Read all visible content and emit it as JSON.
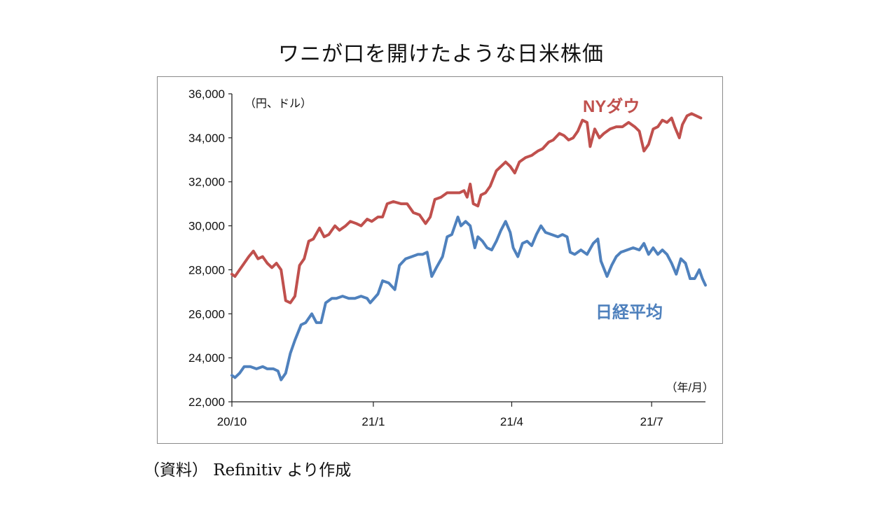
{
  "title": "ワニが口を開けたような日米株価",
  "source": "（資料） Refinitiv より作成",
  "colors": {
    "ny_dow": "#c0504d",
    "nikkei": "#4f81bd",
    "axis": "#222222",
    "frame": "#8a8a8a"
  },
  "chart_data": {
    "type": "line",
    "title": "ワニが口を開けたような日米株価",
    "ylabel": "（円、ドル）",
    "xlabel": "（年/月）",
    "ylim": [
      22000,
      36000
    ],
    "yticks": [
      "22,000",
      "24,000",
      "26,000",
      "28,000",
      "30,000",
      "32,000",
      "34,000",
      "36,000"
    ],
    "ytick_values": [
      22000,
      24000,
      26000,
      28000,
      30000,
      32000,
      34000,
      36000
    ],
    "xlim": [
      "2020-10-01",
      "2021-08-05"
    ],
    "xticks": [
      {
        "label": "20/10",
        "date": "2020-10-01"
      },
      {
        "label": "21/1",
        "date": "2021-01-01"
      },
      {
        "label": "21/4",
        "date": "2021-04-01"
      },
      {
        "label": "21/7",
        "date": "2021-07-01"
      }
    ],
    "grid": false,
    "legend": "inline labels",
    "series": [
      {
        "name": "NYダウ",
        "color": "#c0504d",
        "points": [
          [
            "2020-10-01",
            27800
          ],
          [
            "2020-10-03",
            27700
          ],
          [
            "2020-10-06",
            28000
          ],
          [
            "2020-10-08",
            28200
          ],
          [
            "2020-10-12",
            28600
          ],
          [
            "2020-10-15",
            28850
          ],
          [
            "2020-10-18",
            28500
          ],
          [
            "2020-10-21",
            28600
          ],
          [
            "2020-10-24",
            28300
          ],
          [
            "2020-10-27",
            28100
          ],
          [
            "2020-10-30",
            28300
          ],
          [
            "2020-11-02",
            28000
          ],
          [
            "2020-11-05",
            26600
          ],
          [
            "2020-11-08",
            26500
          ],
          [
            "2020-11-11",
            26800
          ],
          [
            "2020-11-14",
            28200
          ],
          [
            "2020-11-17",
            28500
          ],
          [
            "2020-11-20",
            29300
          ],
          [
            "2020-11-23",
            29400
          ],
          [
            "2020-11-27",
            29900
          ],
          [
            "2020-11-30",
            29500
          ],
          [
            "2020-12-03",
            29600
          ],
          [
            "2020-12-07",
            30000
          ],
          [
            "2020-12-10",
            29800
          ],
          [
            "2020-12-14",
            30000
          ],
          [
            "2020-12-17",
            30200
          ],
          [
            "2020-12-21",
            30100
          ],
          [
            "2020-12-24",
            30000
          ],
          [
            "2020-12-28",
            30300
          ],
          [
            "2020-12-31",
            30200
          ],
          [
            "2021-01-04",
            30400
          ],
          [
            "2021-01-07",
            30400
          ],
          [
            "2021-01-10",
            31000
          ],
          [
            "2021-01-14",
            31100
          ],
          [
            "2021-01-19",
            31000
          ],
          [
            "2021-01-23",
            31000
          ],
          [
            "2021-01-27",
            30600
          ],
          [
            "2021-01-31",
            30500
          ],
          [
            "2021-02-04",
            30100
          ],
          [
            "2021-02-07",
            30400
          ],
          [
            "2021-02-10",
            31200
          ],
          [
            "2021-02-14",
            31300
          ],
          [
            "2021-02-18",
            31500
          ],
          [
            "2021-02-22",
            31500
          ],
          [
            "2021-02-26",
            31500
          ],
          [
            "2021-03-01",
            31600
          ],
          [
            "2021-03-03",
            31300
          ],
          [
            "2021-03-05",
            31900
          ],
          [
            "2021-03-07",
            31000
          ],
          [
            "2021-03-10",
            30900
          ],
          [
            "2021-03-12",
            31400
          ],
          [
            "2021-03-15",
            31500
          ],
          [
            "2021-03-18",
            31800
          ],
          [
            "2021-03-22",
            32500
          ],
          [
            "2021-03-25",
            32700
          ],
          [
            "2021-03-28",
            32900
          ],
          [
            "2021-03-31",
            32700
          ],
          [
            "2021-04-03",
            32400
          ],
          [
            "2021-04-06",
            32900
          ],
          [
            "2021-04-10",
            33100
          ],
          [
            "2021-04-14",
            33200
          ],
          [
            "2021-04-18",
            33400
          ],
          [
            "2021-04-21",
            33500
          ],
          [
            "2021-04-25",
            33800
          ],
          [
            "2021-04-28",
            33900
          ],
          [
            "2021-05-02",
            34200
          ],
          [
            "2021-05-05",
            34100
          ],
          [
            "2021-05-08",
            33900
          ],
          [
            "2021-05-11",
            34000
          ],
          [
            "2021-05-14",
            34300
          ],
          [
            "2021-05-17",
            34800
          ],
          [
            "2021-05-20",
            34700
          ],
          [
            "2021-05-22",
            33600
          ],
          [
            "2021-05-25",
            34400
          ],
          [
            "2021-05-28",
            34000
          ],
          [
            "2021-05-31",
            34200
          ],
          [
            "2021-06-04",
            34400
          ],
          [
            "2021-06-08",
            34500
          ],
          [
            "2021-06-12",
            34500
          ],
          [
            "2021-06-16",
            34700
          ],
          [
            "2021-06-20",
            34500
          ],
          [
            "2021-06-23",
            34300
          ],
          [
            "2021-06-26",
            33400
          ],
          [
            "2021-06-29",
            33700
          ],
          [
            "2021-07-02",
            34400
          ],
          [
            "2021-07-05",
            34500
          ],
          [
            "2021-07-08",
            34800
          ],
          [
            "2021-07-11",
            34700
          ],
          [
            "2021-07-14",
            34900
          ],
          [
            "2021-07-16",
            34500
          ],
          [
            "2021-07-19",
            34000
          ],
          [
            "2021-07-21",
            34600
          ],
          [
            "2021-07-24",
            35000
          ],
          [
            "2021-07-27",
            35100
          ],
          [
            "2021-07-30",
            35000
          ],
          [
            "2021-08-02",
            34900
          ]
        ]
      },
      {
        "name": "日経平均",
        "color": "#4f81bd",
        "points": [
          [
            "2020-10-01",
            23200
          ],
          [
            "2020-10-03",
            23100
          ],
          [
            "2020-10-06",
            23300
          ],
          [
            "2020-10-09",
            23600
          ],
          [
            "2020-10-13",
            23600
          ],
          [
            "2020-10-17",
            23500
          ],
          [
            "2020-10-21",
            23600
          ],
          [
            "2020-10-24",
            23500
          ],
          [
            "2020-10-28",
            23500
          ],
          [
            "2020-10-31",
            23400
          ],
          [
            "2020-11-02",
            23000
          ],
          [
            "2020-11-05",
            23300
          ],
          [
            "2020-11-08",
            24200
          ],
          [
            "2020-11-11",
            24800
          ],
          [
            "2020-11-15",
            25500
          ],
          [
            "2020-11-18",
            25600
          ],
          [
            "2020-11-22",
            26000
          ],
          [
            "2020-11-25",
            25600
          ],
          [
            "2020-11-28",
            25600
          ],
          [
            "2020-12-01",
            26500
          ],
          [
            "2020-12-05",
            26700
          ],
          [
            "2020-12-08",
            26700
          ],
          [
            "2020-12-12",
            26800
          ],
          [
            "2020-12-16",
            26700
          ],
          [
            "2020-12-20",
            26700
          ],
          [
            "2020-12-24",
            26800
          ],
          [
            "2020-12-28",
            26700
          ],
          [
            "2020-12-30",
            26500
          ],
          [
            "2021-01-04",
            26900
          ],
          [
            "2021-01-07",
            27500
          ],
          [
            "2021-01-11",
            27400
          ],
          [
            "2021-01-15",
            27100
          ],
          [
            "2021-01-18",
            28200
          ],
          [
            "2021-01-22",
            28500
          ],
          [
            "2021-01-26",
            28600
          ],
          [
            "2021-01-30",
            28700
          ],
          [
            "2021-02-02",
            28700
          ],
          [
            "2021-02-05",
            28800
          ],
          [
            "2021-02-08",
            27700
          ],
          [
            "2021-02-11",
            28100
          ],
          [
            "2021-02-15",
            28600
          ],
          [
            "2021-02-18",
            29500
          ],
          [
            "2021-02-21",
            29600
          ],
          [
            "2021-02-25",
            30400
          ],
          [
            "2021-02-27",
            30000
          ],
          [
            "2021-03-02",
            30200
          ],
          [
            "2021-03-05",
            30000
          ],
          [
            "2021-03-08",
            29000
          ],
          [
            "2021-03-10",
            29500
          ],
          [
            "2021-03-13",
            29300
          ],
          [
            "2021-03-16",
            29000
          ],
          [
            "2021-03-19",
            28900
          ],
          [
            "2021-03-22",
            29300
          ],
          [
            "2021-03-25",
            29800
          ],
          [
            "2021-03-28",
            30200
          ],
          [
            "2021-03-31",
            29700
          ],
          [
            "2021-04-02",
            29000
          ],
          [
            "2021-04-05",
            28600
          ],
          [
            "2021-04-08",
            29200
          ],
          [
            "2021-04-11",
            29300
          ],
          [
            "2021-04-14",
            29100
          ],
          [
            "2021-04-17",
            29600
          ],
          [
            "2021-04-20",
            30000
          ],
          [
            "2021-04-23",
            29700
          ],
          [
            "2021-04-27",
            29600
          ],
          [
            "2021-05-01",
            29500
          ],
          [
            "2021-05-04",
            29600
          ],
          [
            "2021-05-07",
            29500
          ],
          [
            "2021-05-09",
            28800
          ],
          [
            "2021-05-12",
            28700
          ],
          [
            "2021-05-16",
            28900
          ],
          [
            "2021-05-20",
            28700
          ],
          [
            "2021-05-24",
            29200
          ],
          [
            "2021-05-27",
            29400
          ],
          [
            "2021-05-29",
            28400
          ],
          [
            "2021-06-02",
            27700
          ],
          [
            "2021-06-05",
            28200
          ],
          [
            "2021-06-08",
            28600
          ],
          [
            "2021-06-11",
            28800
          ],
          [
            "2021-06-15",
            28900
          ],
          [
            "2021-06-19",
            29000
          ],
          [
            "2021-06-23",
            28900
          ],
          [
            "2021-06-26",
            29200
          ],
          [
            "2021-06-29",
            28700
          ],
          [
            "2021-07-02",
            29000
          ],
          [
            "2021-07-05",
            28700
          ],
          [
            "2021-07-08",
            28900
          ],
          [
            "2021-07-11",
            28700
          ],
          [
            "2021-07-14",
            28300
          ],
          [
            "2021-07-17",
            27800
          ],
          [
            "2021-07-20",
            28500
          ],
          [
            "2021-07-23",
            28300
          ],
          [
            "2021-07-26",
            27600
          ],
          [
            "2021-07-29",
            27600
          ],
          [
            "2021-08-01",
            28000
          ],
          [
            "2021-08-03",
            27600
          ],
          [
            "2021-08-05",
            27300
          ]
        ]
      }
    ]
  }
}
